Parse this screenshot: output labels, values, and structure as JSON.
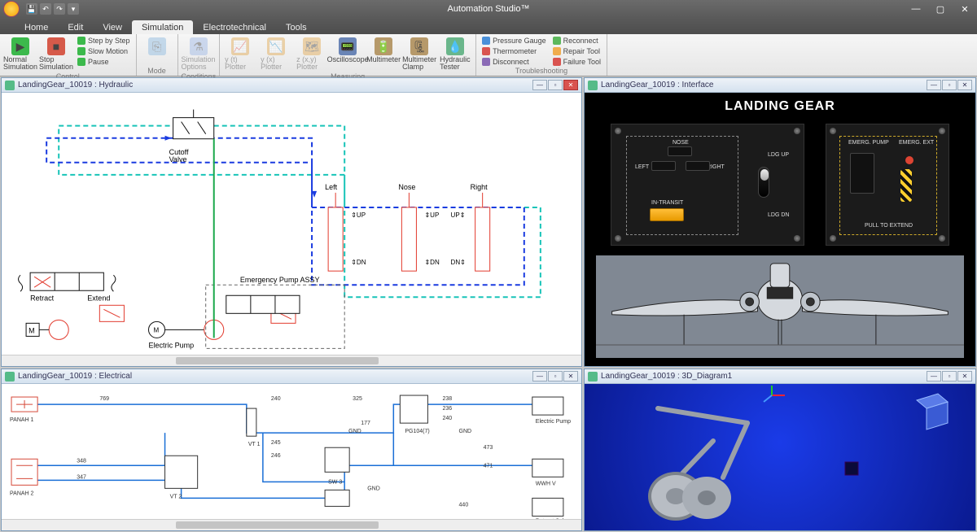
{
  "app": {
    "title": "Automation Studio™"
  },
  "menu": {
    "tabs": [
      "Home",
      "Edit",
      "View",
      "Simulation",
      "Electrotechnical",
      "Tools"
    ],
    "active": 3
  },
  "ribbon": {
    "groups": [
      {
        "label": "Control",
        "items": [
          {
            "kind": "lg",
            "label": "Normal Simulation",
            "color": "#3cb94c",
            "glyph": "▶"
          },
          {
            "kind": "lg",
            "label": "Stop Simulation",
            "color": "#d65a4a",
            "glyph": "■"
          },
          {
            "kind": "col",
            "rows": [
              {
                "label": "Step by Step",
                "color": "#3cb94c"
              },
              {
                "label": "Slow Motion",
                "color": "#3cb94c"
              },
              {
                "label": "Pause",
                "color": "#3cb94c"
              }
            ]
          }
        ]
      },
      {
        "label": "Mode",
        "items": [
          {
            "kind": "lg",
            "label": "",
            "color": "#8ab8e0",
            "glyph": "⎘",
            "disabled": true
          }
        ]
      },
      {
        "label": "Conditions",
        "items": [
          {
            "kind": "lg",
            "label": "Simulation Options",
            "color": "#9bb6e6",
            "glyph": "⚗",
            "disabled": true
          }
        ]
      },
      {
        "label": "Measuring",
        "items": [
          {
            "kind": "lg",
            "label": "y (t) Plotter",
            "color": "#e2a84e",
            "glyph": "📈",
            "disabled": true
          },
          {
            "kind": "lg",
            "label": "y (x) Plotter",
            "color": "#e2a84e",
            "glyph": "📉",
            "disabled": true
          },
          {
            "kind": "lg",
            "label": "z (x,y) Plotter",
            "color": "#e2a84e",
            "glyph": "🗺",
            "disabled": true
          },
          {
            "kind": "lg",
            "label": "Oscilloscope",
            "color": "#6a85b6",
            "glyph": "📟"
          },
          {
            "kind": "lg",
            "label": "Multimeter",
            "color": "#b6996a",
            "glyph": "🔋"
          },
          {
            "kind": "lg",
            "label": "Multimeter Clamp",
            "color": "#b6996a",
            "glyph": "🗜"
          },
          {
            "kind": "lg",
            "label": "Hydraulic Tester",
            "color": "#6ab68b",
            "glyph": "💧"
          }
        ]
      },
      {
        "label": "Troubleshooting",
        "items": [
          {
            "kind": "col",
            "rows": [
              {
                "label": "Pressure Gauge",
                "color": "#4a90d9"
              },
              {
                "label": "Thermometer",
                "color": "#d9534f"
              },
              {
                "label": "Disconnect",
                "color": "#8a6ab6"
              }
            ]
          },
          {
            "kind": "col",
            "rows": [
              {
                "label": "Reconnect",
                "color": "#5cb85c"
              },
              {
                "label": "Repair Tool",
                "color": "#f0ad4e"
              },
              {
                "label": "Failure Tool",
                "color": "#d9534f"
              }
            ]
          }
        ]
      }
    ]
  },
  "panes": {
    "hydraulic": {
      "title": "LandingGear_10019 : Hydraulic",
      "labels": {
        "cutoff": "Cutoff Valve",
        "retract": "Retract",
        "extend": "Extend",
        "epump": "Electric Pump",
        "emerg": "Emergency Pump ASSY",
        "left": "Left",
        "nose": "Nose",
        "right": "Right",
        "up": "UP",
        "dn": "DN"
      },
      "colors": {
        "flow": "#1a3be0",
        "return": "#18c4b8",
        "comp": "#e23b2e",
        "wire": "#111"
      }
    },
    "interface": {
      "title": "LandingGear_10019 : Interface",
      "heading": "LANDING GEAR",
      "labels": {
        "nose": "NOSE",
        "left": "LEFT",
        "right": "RIGHT",
        "ldgup": "LDG UP",
        "ldgdn": "LDG DN",
        "intransit": "IN-TRANSIT",
        "epump": "EMERG. PUMP",
        "eext": "EMERG. EXT",
        "pull": "PULL TO EXTEND"
      }
    },
    "electrical": {
      "title": "LandingGear_10019 : Electrical",
      "nodes": [
        "769",
        "240",
        "325",
        "238",
        "236",
        "240",
        "177",
        "GND",
        "473",
        "471",
        "348",
        "347",
        "245",
        "246",
        "440",
        "PG104 (7)",
        "SW 3",
        "VT 2",
        "VT 1",
        "Electric Pump",
        "Retract Solenoid",
        "PANAH 1",
        "PANAH 2",
        "WWH V"
      ]
    },
    "view3d": {
      "title": "LandingGear_10019 : 3D_Diagram1"
    }
  }
}
